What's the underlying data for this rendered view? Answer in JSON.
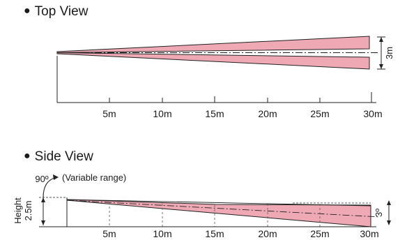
{
  "top_view": {
    "title": "Top View",
    "width_label": "3m",
    "distance_ticks": [
      "5m",
      "10m",
      "15m",
      "20m",
      "25m",
      "30m"
    ]
  },
  "side_view": {
    "title": "Side View",
    "rotation_angle_label": "90º",
    "variable_range_label": "(Variable range)",
    "height_label_word": "Height",
    "height_label_value": "2.5m",
    "tilt_angle_label": "3º",
    "distance_ticks": [
      "5m",
      "10m",
      "15m",
      "20m",
      "25m",
      "30m"
    ]
  },
  "colors": {
    "beam_fill": "#efa9b5",
    "beam_stroke": "#222222"
  }
}
